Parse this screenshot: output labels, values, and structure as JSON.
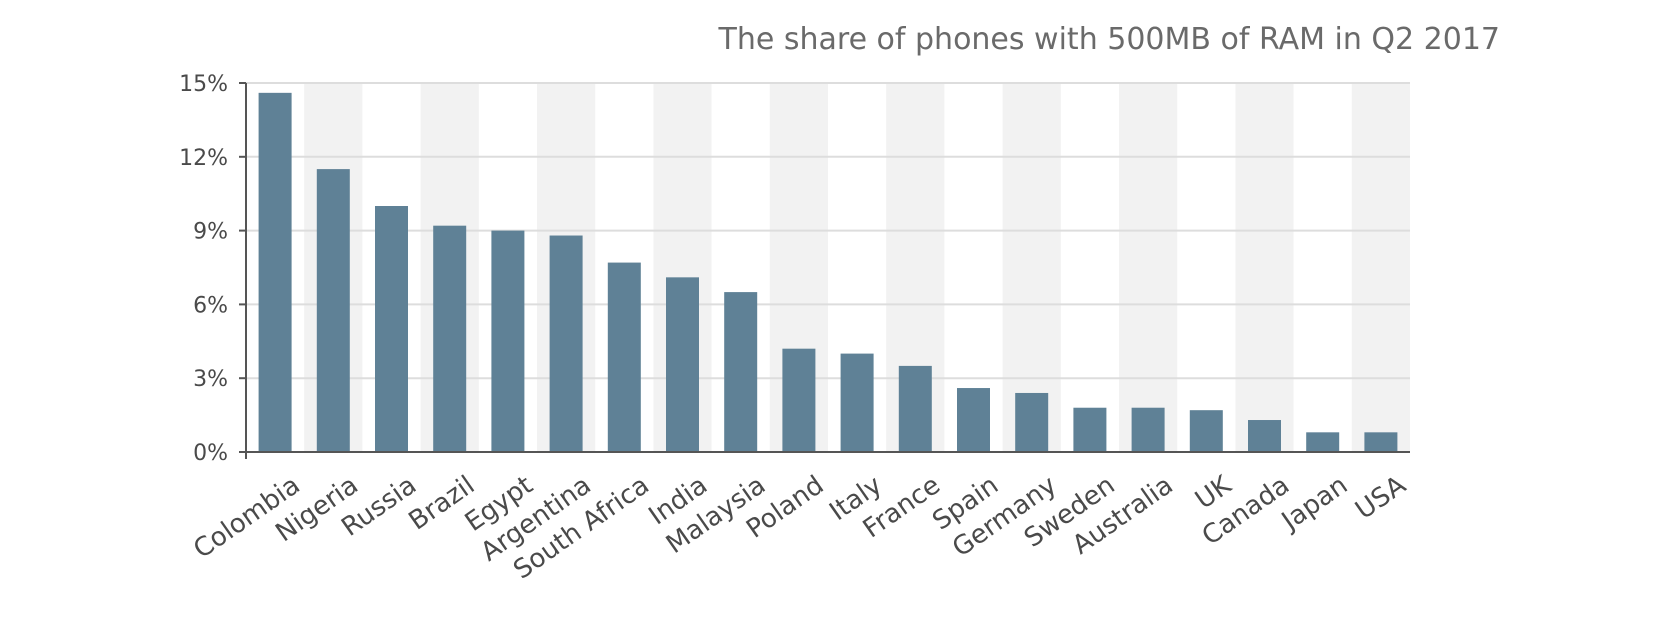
{
  "chart_data": {
    "type": "bar",
    "title": "The share of phones with 500MB of RAM in Q2 2017",
    "categories": [
      "Colombia",
      "Nigeria",
      "Russia",
      "Brazil",
      "Egypt",
      "Argentina",
      "South Africa",
      "India",
      "Malaysia",
      "Poland",
      "Italy",
      "France",
      "Spain",
      "Germany",
      "Sweden",
      "Australia",
      "UK",
      "Canada",
      "Japan",
      "USA"
    ],
    "values": [
      14.6,
      11.5,
      10.0,
      9.2,
      9.0,
      8.8,
      7.7,
      7.1,
      6.5,
      4.2,
      4.0,
      3.5,
      2.6,
      2.4,
      1.8,
      1.8,
      1.7,
      1.3,
      0.8,
      0.8
    ],
    "y_ticks": [
      "0%",
      "3%",
      "6%",
      "9%",
      "12%",
      "15%"
    ],
    "ylim": [
      0,
      15
    ],
    "xlabel": "",
    "ylabel": "",
    "grid": true,
    "colors": {
      "bar": "#5f8196",
      "band": "#f2f2f2",
      "grid": "#dddddd",
      "axis": "#555555"
    }
  }
}
